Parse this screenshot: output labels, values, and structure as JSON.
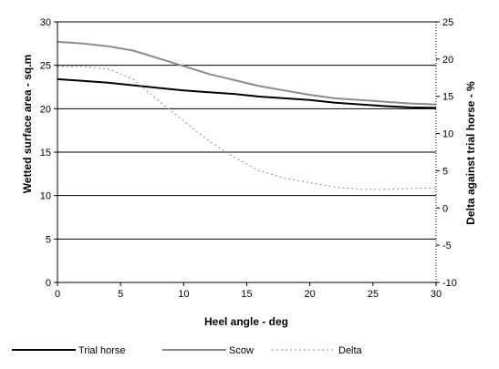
{
  "chart_data": {
    "type": "line",
    "x": [
      0,
      2,
      4,
      6,
      8,
      10,
      12,
      14,
      16,
      18,
      20,
      22,
      24,
      26,
      28,
      30
    ],
    "xlabel": "Heel angle - deg",
    "ylabel": "Wetted surface area - sq.m",
    "y2label": "Delta against trial horse - %",
    "xlim": [
      0,
      30
    ],
    "ylim": [
      0,
      30
    ],
    "y2lim": [
      -10,
      25
    ],
    "xticks": [
      0,
      5,
      10,
      15,
      20,
      25,
      30
    ],
    "yticks": [
      0,
      5,
      10,
      15,
      20,
      25,
      30
    ],
    "y2ticks": [
      -10,
      -5,
      0,
      5,
      10,
      15,
      20,
      25
    ],
    "grid": "horizontal",
    "legend_position": "bottom",
    "series": [
      {
        "name": "Trial horse",
        "axis": "left",
        "color": "#000000",
        "style": "solid",
        "values": [
          23.4,
          23.2,
          23.0,
          22.7,
          22.4,
          22.1,
          21.9,
          21.7,
          21.4,
          21.2,
          21.0,
          20.7,
          20.5,
          20.3,
          20.15,
          20.1
        ]
      },
      {
        "name": "Scow",
        "axis": "left",
        "color": "#8c8c8c",
        "style": "solid",
        "values": [
          27.7,
          27.5,
          27.2,
          26.7,
          25.8,
          24.9,
          24.0,
          23.3,
          22.6,
          22.1,
          21.6,
          21.2,
          21.0,
          20.8,
          20.6,
          20.5
        ]
      },
      {
        "name": "Delta",
        "axis": "right",
        "color": "#8c8c8c",
        "style": "dotted",
        "values": [
          19.0,
          19.0,
          18.7,
          17.3,
          14.4,
          11.7,
          9.0,
          6.8,
          5.0,
          4.0,
          3.4,
          2.8,
          2.5,
          2.5,
          2.6,
          2.7
        ]
      }
    ]
  }
}
